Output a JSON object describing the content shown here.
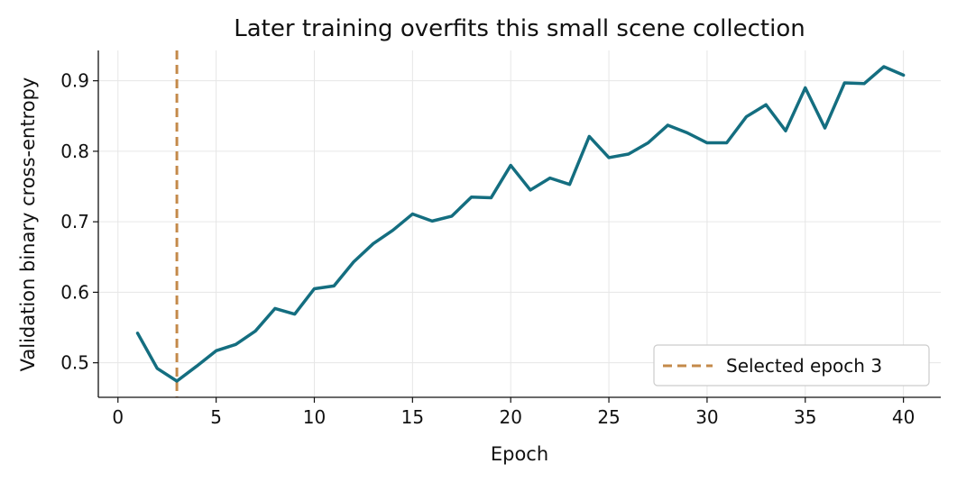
{
  "chart_data": {
    "type": "line",
    "title": "Later training overfits this small scene collection",
    "xlabel": "Epoch",
    "ylabel": "Validation binary cross-entropy",
    "xlim": [
      -1,
      41.9
    ],
    "ylim": [
      0.451,
      0.943
    ],
    "xticks": [
      0,
      5,
      10,
      15,
      20,
      25,
      30,
      35,
      40
    ],
    "xtick_labels": [
      "0",
      "5",
      "10",
      "15",
      "20",
      "25",
      "30",
      "35",
      "40"
    ],
    "yticks": [
      0.5,
      0.6,
      0.7,
      0.8,
      0.9
    ],
    "ytick_labels": [
      "0.5",
      "0.6",
      "0.7",
      "0.8",
      "0.9"
    ],
    "grid": true,
    "legend_position": "lower-right",
    "series": [
      {
        "color": "#146e80",
        "x": [
          1,
          2,
          3,
          4,
          5,
          6,
          7,
          8,
          9,
          10,
          11,
          12,
          13,
          14,
          15,
          16,
          17,
          18,
          19,
          20,
          21,
          22,
          23,
          24,
          25,
          26,
          27,
          28,
          29,
          30,
          31,
          32,
          33,
          34,
          35,
          36,
          37,
          38,
          39,
          40
        ],
        "values": [
          0.542,
          0.492,
          0.474,
          0.495,
          0.517,
          0.526,
          0.545,
          0.577,
          0.569,
          0.605,
          0.609,
          0.643,
          0.669,
          0.688,
          0.711,
          0.701,
          0.708,
          0.735,
          0.734,
          0.78,
          0.745,
          0.762,
          0.753,
          0.821,
          0.791,
          0.796,
          0.812,
          0.837,
          0.826,
          0.812,
          0.812,
          0.849,
          0.866,
          0.829,
          0.89,
          0.833,
          0.897,
          0.896,
          0.92,
          0.908
        ]
      }
    ],
    "vline": {
      "x": 3,
      "color": "#c48a4a",
      "style": "dashed",
      "label": "Selected epoch 3"
    }
  }
}
